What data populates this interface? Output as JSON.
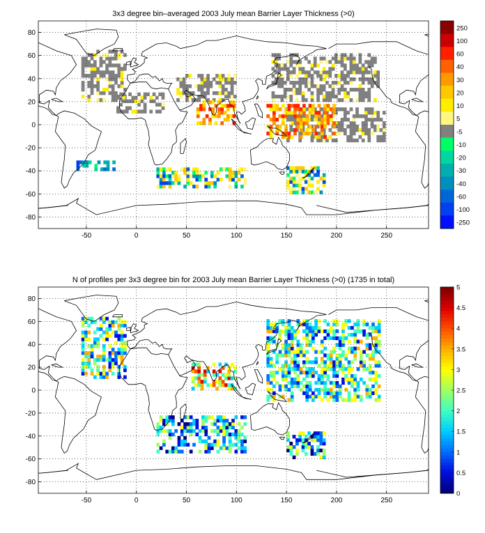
{
  "chart_data": [
    {
      "type": "heatmap",
      "title": "3x3 degree bin–averaged 2003 July mean Barrier Layer Thickness (>0)",
      "xlim": [
        -98,
        292
      ],
      "ylim": [
        -90,
        90
      ],
      "x_ticks": [
        "-50",
        "0",
        "50",
        "100",
        "150",
        "200",
        "250"
      ],
      "y_ticks": [
        "80",
        "60",
        "40",
        "20",
        "0",
        "-20",
        "-40",
        "-60",
        "-80"
      ],
      "grid": true,
      "colorbar": {
        "labels": [
          "250",
          "100",
          "60",
          "40",
          "30",
          "20",
          "10",
          "5",
          "-5",
          "-10",
          "-20",
          "-30",
          "-40",
          "-60",
          "-100",
          "-250"
        ],
        "colors": [
          "#8b0000",
          "#cc0000",
          "#ff2000",
          "#ff6000",
          "#ff9900",
          "#ffc800",
          "#ffee00",
          "#fff780",
          "#808080",
          "#00ff66",
          "#00d8a0",
          "#00b0b0",
          "#0090c0",
          "#0066d8",
          "#0040f0",
          "#0010ff"
        ]
      },
      "data_regions": [
        {
          "lon": [
            -55,
            -10
          ],
          "lat": [
            20,
            65
          ],
          "class": "gray"
        },
        {
          "lon": [
            -20,
            30
          ],
          "lat": [
            10,
            30
          ],
          "class": "gray"
        },
        {
          "lon": [
            40,
            100
          ],
          "lat": [
            20,
            45
          ],
          "class": "gray"
        },
        {
          "lon": [
            135,
            245
          ],
          "lat": [
            20,
            62
          ],
          "class": "gray"
        },
        {
          "lon": [
            150,
            250
          ],
          "lat": [
            -15,
            15
          ],
          "class": "gray"
        },
        {
          "lon": [
            60,
            100
          ],
          "lat": [
            0,
            22
          ],
          "class": "positive"
        },
        {
          "lon": [
            130,
            200
          ],
          "lat": [
            -12,
            18
          ],
          "class": "positive"
        },
        {
          "lon": [
            20,
            110
          ],
          "lat": [
            -55,
            -35
          ],
          "class": "mixed"
        },
        {
          "lon": [
            -60,
            -20
          ],
          "lat": [
            -40,
            -30
          ],
          "class": "negative"
        },
        {
          "lon": [
            150,
            190
          ],
          "lat": [
            -60,
            -35
          ],
          "class": "mixed"
        }
      ]
    },
    {
      "type": "heatmap",
      "title": "N of profiles per 3x3 degree bin for 2003 July mean Barrier Layer Thickness (>0) (1735 in total)",
      "xlim": [
        -98,
        292
      ],
      "ylim": [
        -90,
        90
      ],
      "x_ticks": [
        "-50",
        "0",
        "50",
        "100",
        "150",
        "200",
        "250"
      ],
      "y_ticks": [
        "80",
        "60",
        "40",
        "20",
        "0",
        "-20",
        "-40",
        "-60",
        "-80"
      ],
      "grid": true,
      "colorbar": {
        "min": 0,
        "max": 5,
        "labels": [
          "5",
          "4.5",
          "4",
          "3.5",
          "3",
          "2.5",
          "2",
          "1.5",
          "1",
          "0.5",
          "0"
        ],
        "colors": [
          "#800000",
          "#e00000",
          "#ff5000",
          "#ffb000",
          "#ffff00",
          "#a0ff60",
          "#40ffc0",
          "#00d0ff",
          "#0070ff",
          "#0010e0",
          "#000080"
        ]
      },
      "data_regions": [
        {
          "lon": [
            -55,
            -10
          ],
          "lat": [
            10,
            65
          ],
          "value": 2
        },
        {
          "lon": [
            55,
            100
          ],
          "lat": [
            0,
            25
          ],
          "value": 3
        },
        {
          "lon": [
            130,
            245
          ],
          "lat": [
            -10,
            62
          ],
          "value": 2
        },
        {
          "lon": [
            20,
            110
          ],
          "lat": [
            -55,
            -20
          ],
          "value": 1.5
        },
        {
          "lon": [
            150,
            190
          ],
          "lat": [
            -60,
            -35
          ],
          "value": 1.5
        }
      ]
    }
  ]
}
